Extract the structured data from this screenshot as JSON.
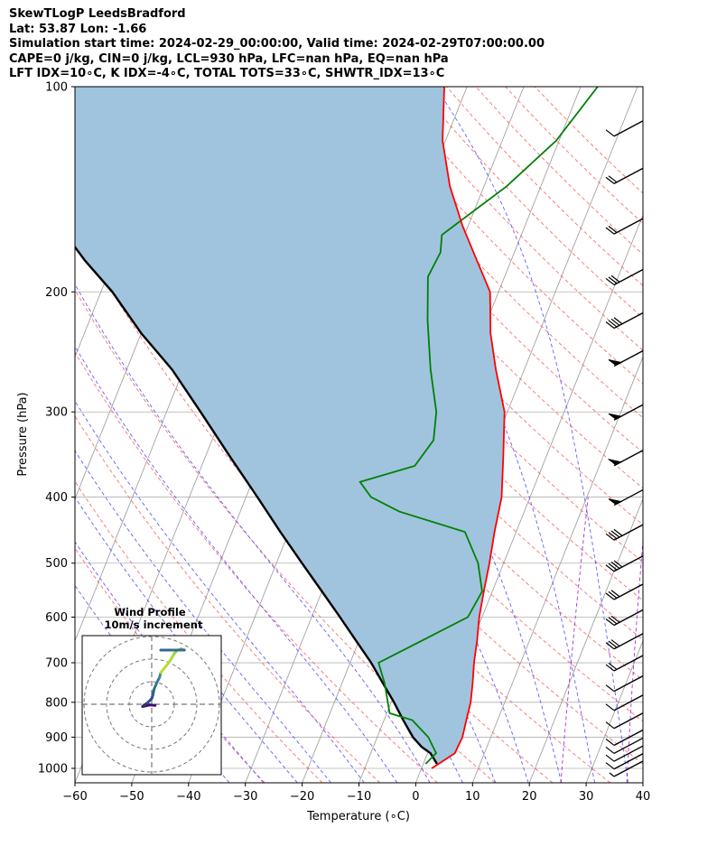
{
  "header": {
    "line1": "SkewTLogP LeedsBradford",
    "line2": "Lat: 53.87   Lon: -1.66",
    "line3": "Simulation start time: 2024-02-29_00:00:00, Valid time: 2024-02-29T07:00:00.00",
    "line4": "CAPE=0 j/kg, CIN=0 j/kg, LCL=930 hPa, LFC=nan hPa, EQ=nan hPa",
    "line5": "LFT IDX=10∘C, K IDX=-4∘C, TOTAL TOTS=33∘C, SHWTR_IDX=13∘C"
  },
  "chart_data": {
    "type": "line",
    "title": "SkewTLogP LeedsBradford",
    "xlabel": "Temperature (∘C)",
    "ylabel": "Pressure (hPa)",
    "xlim": [
      -60,
      40
    ],
    "ylim": [
      1050,
      100
    ],
    "y_scale": "log",
    "skew": "skew-T log-P",
    "x_ticks": [
      "−60",
      "−50",
      "−40",
      "−30",
      "−20",
      "−10",
      "0",
      "10",
      "20",
      "30",
      "40"
    ],
    "y_ticks": [
      "100",
      "200",
      "300",
      "400",
      "500",
      "600",
      "700",
      "800",
      "900",
      "1000"
    ],
    "grid": true,
    "colors": {
      "temperature": "#ff0000",
      "dewpoint": "#008000",
      "parcel": "#000000",
      "shade": "#a0c4de",
      "dry_adiabats": "#ff5555",
      "moist_adiabats": "#4444ff",
      "mixing_ratio": "#9900cc",
      "isotherms": "#999999"
    },
    "series": [
      {
        "key": "temperature",
        "points": [
          [
            1.8,
            1000
          ],
          [
            4.8,
            950
          ],
          [
            5.0,
            900
          ],
          [
            4.5,
            850
          ],
          [
            4.0,
            800
          ],
          [
            3.0,
            750
          ],
          [
            1.8,
            700
          ],
          [
            0.8,
            650
          ],
          [
            -0.5,
            600
          ],
          [
            -1.5,
            550
          ],
          [
            -2.5,
            500
          ],
          [
            -3.8,
            450
          ],
          [
            -5.0,
            400
          ],
          [
            -7.5,
            350
          ],
          [
            -10.5,
            300
          ],
          [
            -15.0,
            260
          ],
          [
            -18.5,
            230
          ],
          [
            -21.5,
            200
          ],
          [
            -26.0,
            180
          ],
          [
            -31.0,
            160
          ],
          [
            -36.0,
            140
          ],
          [
            -40.5,
            120
          ],
          [
            -44.0,
            100
          ]
        ]
      },
      {
        "key": "dewpoint",
        "points": [
          [
            0.4,
            985
          ],
          [
            1.5,
            950
          ],
          [
            -1.0,
            900
          ],
          [
            -5.0,
            850
          ],
          [
            -9.5,
            830
          ],
          [
            -12.5,
            750
          ],
          [
            -15.0,
            700
          ],
          [
            -9.0,
            650
          ],
          [
            -2.5,
            600
          ],
          [
            -1.8,
            550
          ],
          [
            -4.5,
            500
          ],
          [
            -9.0,
            450
          ],
          [
            -22.0,
            420
          ],
          [
            -28.0,
            400
          ],
          [
            -31.0,
            380
          ],
          [
            -22.5,
            360
          ],
          [
            -21.0,
            330
          ],
          [
            -22.5,
            300
          ],
          [
            -26.5,
            260
          ],
          [
            -30.5,
            220
          ],
          [
            -33.5,
            190
          ],
          [
            -33.0,
            175
          ],
          [
            -34.0,
            165
          ],
          [
            -26.0,
            140
          ],
          [
            -20.5,
            120
          ],
          [
            -17.0,
            100
          ]
        ]
      },
      {
        "key": "parcel",
        "points": [
          [
            2.4,
            985
          ],
          [
            0.5,
            950
          ],
          [
            -1.5,
            930
          ],
          [
            -3.7,
            900
          ],
          [
            -6.6,
            850
          ],
          [
            -9.5,
            800
          ],
          [
            -12.8,
            750
          ],
          [
            -16.3,
            700
          ],
          [
            -20.5,
            650
          ],
          [
            -25.0,
            600
          ],
          [
            -30.0,
            550
          ],
          [
            -35.5,
            500
          ],
          [
            -41.5,
            450
          ],
          [
            -48.0,
            400
          ],
          [
            -55.5,
            350
          ],
          [
            -64.0,
            300
          ],
          [
            -72.0,
            260
          ],
          [
            -80.0,
            230
          ],
          [
            -88.0,
            200
          ],
          [
            -95.0,
            180
          ],
          [
            -102.0,
            160
          ],
          [
            -110.0,
            140
          ],
          [
            -118.0,
            120
          ],
          [
            -127.0,
            100
          ]
        ]
      }
    ],
    "wind_barbs": [
      {
        "pressure": 1000,
        "barb": "short"
      },
      {
        "pressure": 975,
        "barb": "full"
      },
      {
        "pressure": 950,
        "barb": "full"
      },
      {
        "pressure": 925,
        "barb": "full"
      },
      {
        "pressure": 900,
        "barb": "full"
      },
      {
        "pressure": 850,
        "barb": "full"
      },
      {
        "pressure": 800,
        "barb": "full"
      },
      {
        "pressure": 750,
        "barb": "full"
      },
      {
        "pressure": 700,
        "barb": "two"
      },
      {
        "pressure": 650,
        "barb": "three"
      },
      {
        "pressure": 600,
        "barb": "three"
      },
      {
        "pressure": 550,
        "barb": "three"
      },
      {
        "pressure": 500,
        "barb": "four"
      },
      {
        "pressure": 450,
        "barb": "four"
      },
      {
        "pressure": 400,
        "barb": "pennant"
      },
      {
        "pressure": 350,
        "barb": "pennant"
      },
      {
        "pressure": 300,
        "barb": "pennant"
      },
      {
        "pressure": 250,
        "barb": "pennant"
      },
      {
        "pressure": 220,
        "barb": "four"
      },
      {
        "pressure": 190,
        "barb": "three"
      },
      {
        "pressure": 160,
        "barb": "two"
      },
      {
        "pressure": 135,
        "barb": "two"
      },
      {
        "pressure": 115,
        "barb": "one"
      }
    ],
    "hodograph": {
      "title": "Wind Profile",
      "subtitle": "10m/s increment",
      "rings": [
        10,
        20,
        30
      ],
      "points": [
        [
          1.5,
          -0.5
        ],
        [
          -1.0,
          -0.3
        ],
        [
          -4.0,
          -1.0
        ],
        [
          -3.5,
          -0.5
        ],
        [
          -2.0,
          0.5
        ],
        [
          0.0,
          2.5
        ],
        [
          0.5,
          4.0
        ],
        [
          1.0,
          6.5
        ],
        [
          2.0,
          9.0
        ],
        [
          3.5,
          12.0
        ],
        [
          4.0,
          14.0
        ],
        [
          6.0,
          16.5
        ],
        [
          8.0,
          19.0
        ],
        [
          10.0,
          22.5
        ],
        [
          11.5,
          24.0
        ],
        [
          13.0,
          24.5
        ],
        [
          14.5,
          24.0
        ],
        [
          8.0,
          24.0
        ],
        [
          4.0,
          24.0
        ]
      ]
    }
  }
}
